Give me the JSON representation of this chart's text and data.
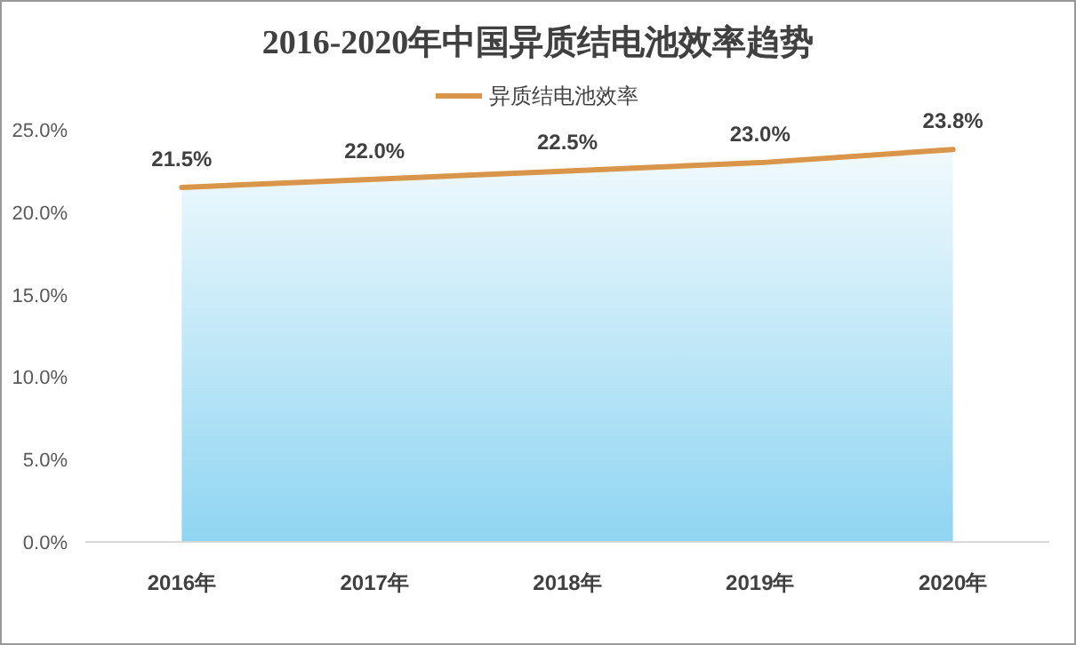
{
  "chart_data": {
    "type": "area",
    "title": "2016-2020年中国异质结电池效率趋势",
    "categories": [
      "2016年",
      "2017年",
      "2018年",
      "2019年",
      "2020年"
    ],
    "series": [
      {
        "type": "area",
        "color": "#8fd5f2",
        "values": [
          21.5,
          22.0,
          22.5,
          23.0,
          23.8
        ]
      },
      {
        "type": "line",
        "name": "异质结电池效率",
        "color": "#d9964a",
        "values": [
          21.5,
          22.0,
          22.5,
          23.0,
          23.8
        ],
        "value_labels": [
          "21.5%",
          "22.0%",
          "22.5%",
          "23.0%",
          "23.8%"
        ]
      }
    ],
    "ylim": [
      0,
      25
    ],
    "yticks": [
      {
        "value": 0,
        "label": "0.0%"
      },
      {
        "value": 5,
        "label": "5.0%"
      },
      {
        "value": 10,
        "label": "10.0%"
      },
      {
        "value": 15,
        "label": "15.0%"
      },
      {
        "value": 20,
        "label": "20.0%"
      },
      {
        "value": 25,
        "label": "25.0%"
      }
    ],
    "legend": "top",
    "grid": false
  }
}
